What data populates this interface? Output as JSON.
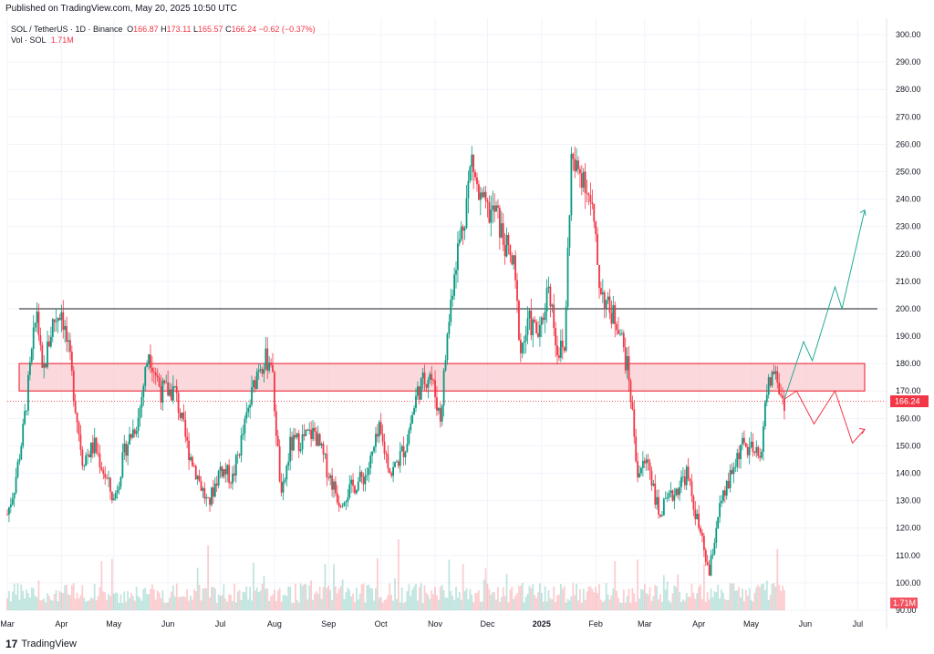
{
  "header": {
    "published": "Published on TradingView.com, May 20, 2025 10:50 UTC"
  },
  "legend": {
    "symbol": "SOL / TetherUS · 1D · Binance",
    "open_label": "O",
    "open": "166.87",
    "high_label": "H",
    "high": "173.11",
    "low_label": "L",
    "low": "165.57",
    "close_label": "C",
    "close": "166.24",
    "change": "−0.62 (−0.37%)",
    "vol_label": "Vol · SOL",
    "vol": "1.71M"
  },
  "footer": {
    "brand": "TradingView"
  },
  "colors": {
    "up": "#089981",
    "down": "#f23645",
    "zone_fill": "#f8cbcf",
    "zone_border": "#f23645",
    "grid": "#f0f3fa",
    "axis_text": "#131722"
  },
  "chart_data": {
    "type": "candlestick",
    "title": "SOL / TetherUS · 1D · Binance",
    "ylim": [
      90,
      300
    ],
    "y_ticks": [
      "300.00",
      "290.00",
      "280.00",
      "270.00",
      "260.00",
      "250.00",
      "240.00",
      "230.00",
      "220.00",
      "210.00",
      "200.00",
      "190.00",
      "180.00",
      "170.00",
      "160.00",
      "150.00",
      "140.00",
      "130.00",
      "120.00",
      "110.00",
      "100.00",
      "90.00"
    ],
    "x_ticks": [
      "Mar",
      "Apr",
      "May",
      "Jun",
      "Jul",
      "Aug",
      "Sep",
      "Oct",
      "Nov",
      "Dec",
      "2025",
      "Feb",
      "Mar",
      "Apr",
      "May",
      "Jun",
      "Jul"
    ],
    "price_anchors": [
      {
        "date": "2024-03-01",
        "price": 125
      },
      {
        "date": "2024-03-05",
        "price": 135
      },
      {
        "date": "2024-03-10",
        "price": 155
      },
      {
        "date": "2024-03-18",
        "price": 200
      },
      {
        "date": "2024-03-21",
        "price": 175
      },
      {
        "date": "2024-03-27",
        "price": 195
      },
      {
        "date": "2024-04-01",
        "price": 200
      },
      {
        "date": "2024-04-06",
        "price": 180
      },
      {
        "date": "2024-04-13",
        "price": 145
      },
      {
        "date": "2024-04-20",
        "price": 150
      },
      {
        "date": "2024-05-01",
        "price": 130
      },
      {
        "date": "2024-05-08",
        "price": 150
      },
      {
        "date": "2024-05-15",
        "price": 160
      },
      {
        "date": "2024-05-21",
        "price": 185
      },
      {
        "date": "2024-05-28",
        "price": 170
      },
      {
        "date": "2024-06-05",
        "price": 170
      },
      {
        "date": "2024-06-12",
        "price": 150
      },
      {
        "date": "2024-06-24",
        "price": 128
      },
      {
        "date": "2024-07-01",
        "price": 142
      },
      {
        "date": "2024-07-08",
        "price": 138
      },
      {
        "date": "2024-07-16",
        "price": 160
      },
      {
        "date": "2024-07-23",
        "price": 180
      },
      {
        "date": "2024-07-30",
        "price": 182
      },
      {
        "date": "2024-08-05",
        "price": 130
      },
      {
        "date": "2024-08-10",
        "price": 150
      },
      {
        "date": "2024-08-24",
        "price": 155
      },
      {
        "date": "2024-09-01",
        "price": 140
      },
      {
        "date": "2024-09-07",
        "price": 130
      },
      {
        "date": "2024-09-15",
        "price": 135
      },
      {
        "date": "2024-09-23",
        "price": 140
      },
      {
        "date": "2024-09-30",
        "price": 155
      },
      {
        "date": "2024-10-07",
        "price": 140
      },
      {
        "date": "2024-10-15",
        "price": 150
      },
      {
        "date": "2024-10-22",
        "price": 170
      },
      {
        "date": "2024-10-29",
        "price": 177
      },
      {
        "date": "2024-11-04",
        "price": 160
      },
      {
        "date": "2024-11-08",
        "price": 190
      },
      {
        "date": "2024-11-12",
        "price": 215
      },
      {
        "date": "2024-11-18",
        "price": 235
      },
      {
        "date": "2024-11-22",
        "price": 255
      },
      {
        "date": "2024-11-26",
        "price": 240
      },
      {
        "date": "2024-12-01",
        "price": 235
      },
      {
        "date": "2024-12-06",
        "price": 235
      },
      {
        "date": "2024-12-10",
        "price": 225
      },
      {
        "date": "2024-12-16",
        "price": 215
      },
      {
        "date": "2024-12-20",
        "price": 185
      },
      {
        "date": "2024-12-25",
        "price": 195
      },
      {
        "date": "2024-12-31",
        "price": 190
      },
      {
        "date": "2025-01-05",
        "price": 210
      },
      {
        "date": "2025-01-10",
        "price": 185
      },
      {
        "date": "2025-01-14",
        "price": 185
      },
      {
        "date": "2025-01-18",
        "price": 255
      },
      {
        "date": "2025-01-20",
        "price": 250
      },
      {
        "date": "2025-01-25",
        "price": 250
      },
      {
        "date": "2025-01-30",
        "price": 235
      },
      {
        "date": "2025-02-03",
        "price": 210
      },
      {
        "date": "2025-02-08",
        "price": 200
      },
      {
        "date": "2025-02-14",
        "price": 195
      },
      {
        "date": "2025-02-20",
        "price": 175
      },
      {
        "date": "2025-02-25",
        "price": 140
      },
      {
        "date": "2025-03-03",
        "price": 145
      },
      {
        "date": "2025-03-09",
        "price": 125
      },
      {
        "date": "2025-03-15",
        "price": 130
      },
      {
        "date": "2025-03-25",
        "price": 140
      },
      {
        "date": "2025-04-01",
        "price": 120
      },
      {
        "date": "2025-04-07",
        "price": 103
      },
      {
        "date": "2025-04-12",
        "price": 125
      },
      {
        "date": "2025-04-20",
        "price": 140
      },
      {
        "date": "2025-04-25",
        "price": 150
      },
      {
        "date": "2025-05-01",
        "price": 148
      },
      {
        "date": "2025-05-06",
        "price": 145
      },
      {
        "date": "2025-05-10",
        "price": 170
      },
      {
        "date": "2025-05-14",
        "price": 178
      },
      {
        "date": "2025-05-18",
        "price": 168
      },
      {
        "date": "2025-05-20",
        "price": 166.24
      }
    ],
    "resistance_line": 200,
    "support_zone": [
      170,
      180
    ],
    "last_price": "166.24",
    "last_volume": "1.71M",
    "bullish_scenario": [
      {
        "date": "2025-05-20",
        "price": 167
      },
      {
        "date": "2025-05-31",
        "price": 188
      },
      {
        "date": "2025-06-05",
        "price": 181
      },
      {
        "date": "2025-06-18",
        "price": 208
      },
      {
        "date": "2025-06-22",
        "price": 200
      },
      {
        "date": "2025-07-05",
        "price": 236
      }
    ],
    "bearish_scenario": [
      {
        "date": "2025-05-20",
        "price": 167
      },
      {
        "date": "2025-05-27",
        "price": 170
      },
      {
        "date": "2025-06-06",
        "price": 158
      },
      {
        "date": "2025-06-18",
        "price": 170
      },
      {
        "date": "2025-06-28",
        "price": 151
      },
      {
        "date": "2025-07-05",
        "price": 156
      }
    ]
  }
}
